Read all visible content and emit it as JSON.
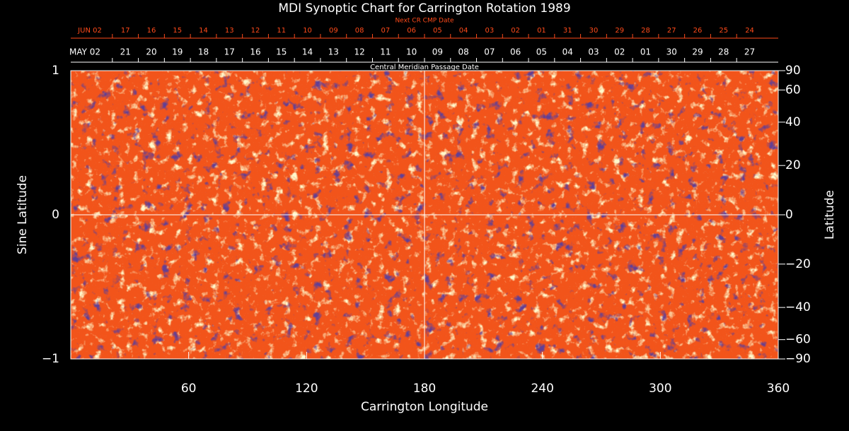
{
  "chart_data": {
    "type": "synoptic",
    "title": "MDI Synoptic Chart for Carrington Rotation 1989",
    "xlabel": "Carrington Longitude",
    "ylabel": "Sine Latitude",
    "y2label": "Latitude",
    "xlim": [
      0,
      360
    ],
    "xticks": [
      60,
      120,
      180,
      240,
      300,
      360
    ],
    "ylim": [
      -1,
      1
    ],
    "yticks": [
      {
        "value": -1,
        "label": "−1"
      },
      0,
      1
    ],
    "y2lim": [
      -90,
      90
    ],
    "y2scale": "sine",
    "y2ticks": [
      90,
      60,
      40,
      20,
      0,
      {
        "value": -20,
        "label": "−20"
      },
      {
        "value": -40,
        "label": "−40"
      },
      {
        "value": -60,
        "label": "−60"
      },
      {
        "value": -90,
        "label": "−90"
      }
    ],
    "cmp_axis": {
      "label": "Central Meridian Passage Date",
      "month": "MAY 02",
      "color": "#ffffff",
      "days": [
        "21",
        "20",
        "19",
        "18",
        "17",
        "16",
        "15",
        "14",
        "13",
        "12",
        "11",
        "10",
        "09",
        "08",
        "07",
        "06",
        "05",
        "04",
        "03",
        "02",
        "01",
        "30",
        "29",
        "28",
        "27"
      ]
    },
    "next_cmp_axis": {
      "label": "Next CR CMP Date",
      "month": "JUN 02",
      "color": "#ff4a1a",
      "days": [
        "17",
        "16",
        "15",
        "14",
        "13",
        "12",
        "11",
        "10",
        "09",
        "08",
        "07",
        "06",
        "05",
        "04",
        "03",
        "02",
        "01",
        "31",
        "30",
        "29",
        "28",
        "27",
        "26",
        "25",
        "24"
      ]
    },
    "image_color": "#f2541a",
    "guide_lines": true
  }
}
